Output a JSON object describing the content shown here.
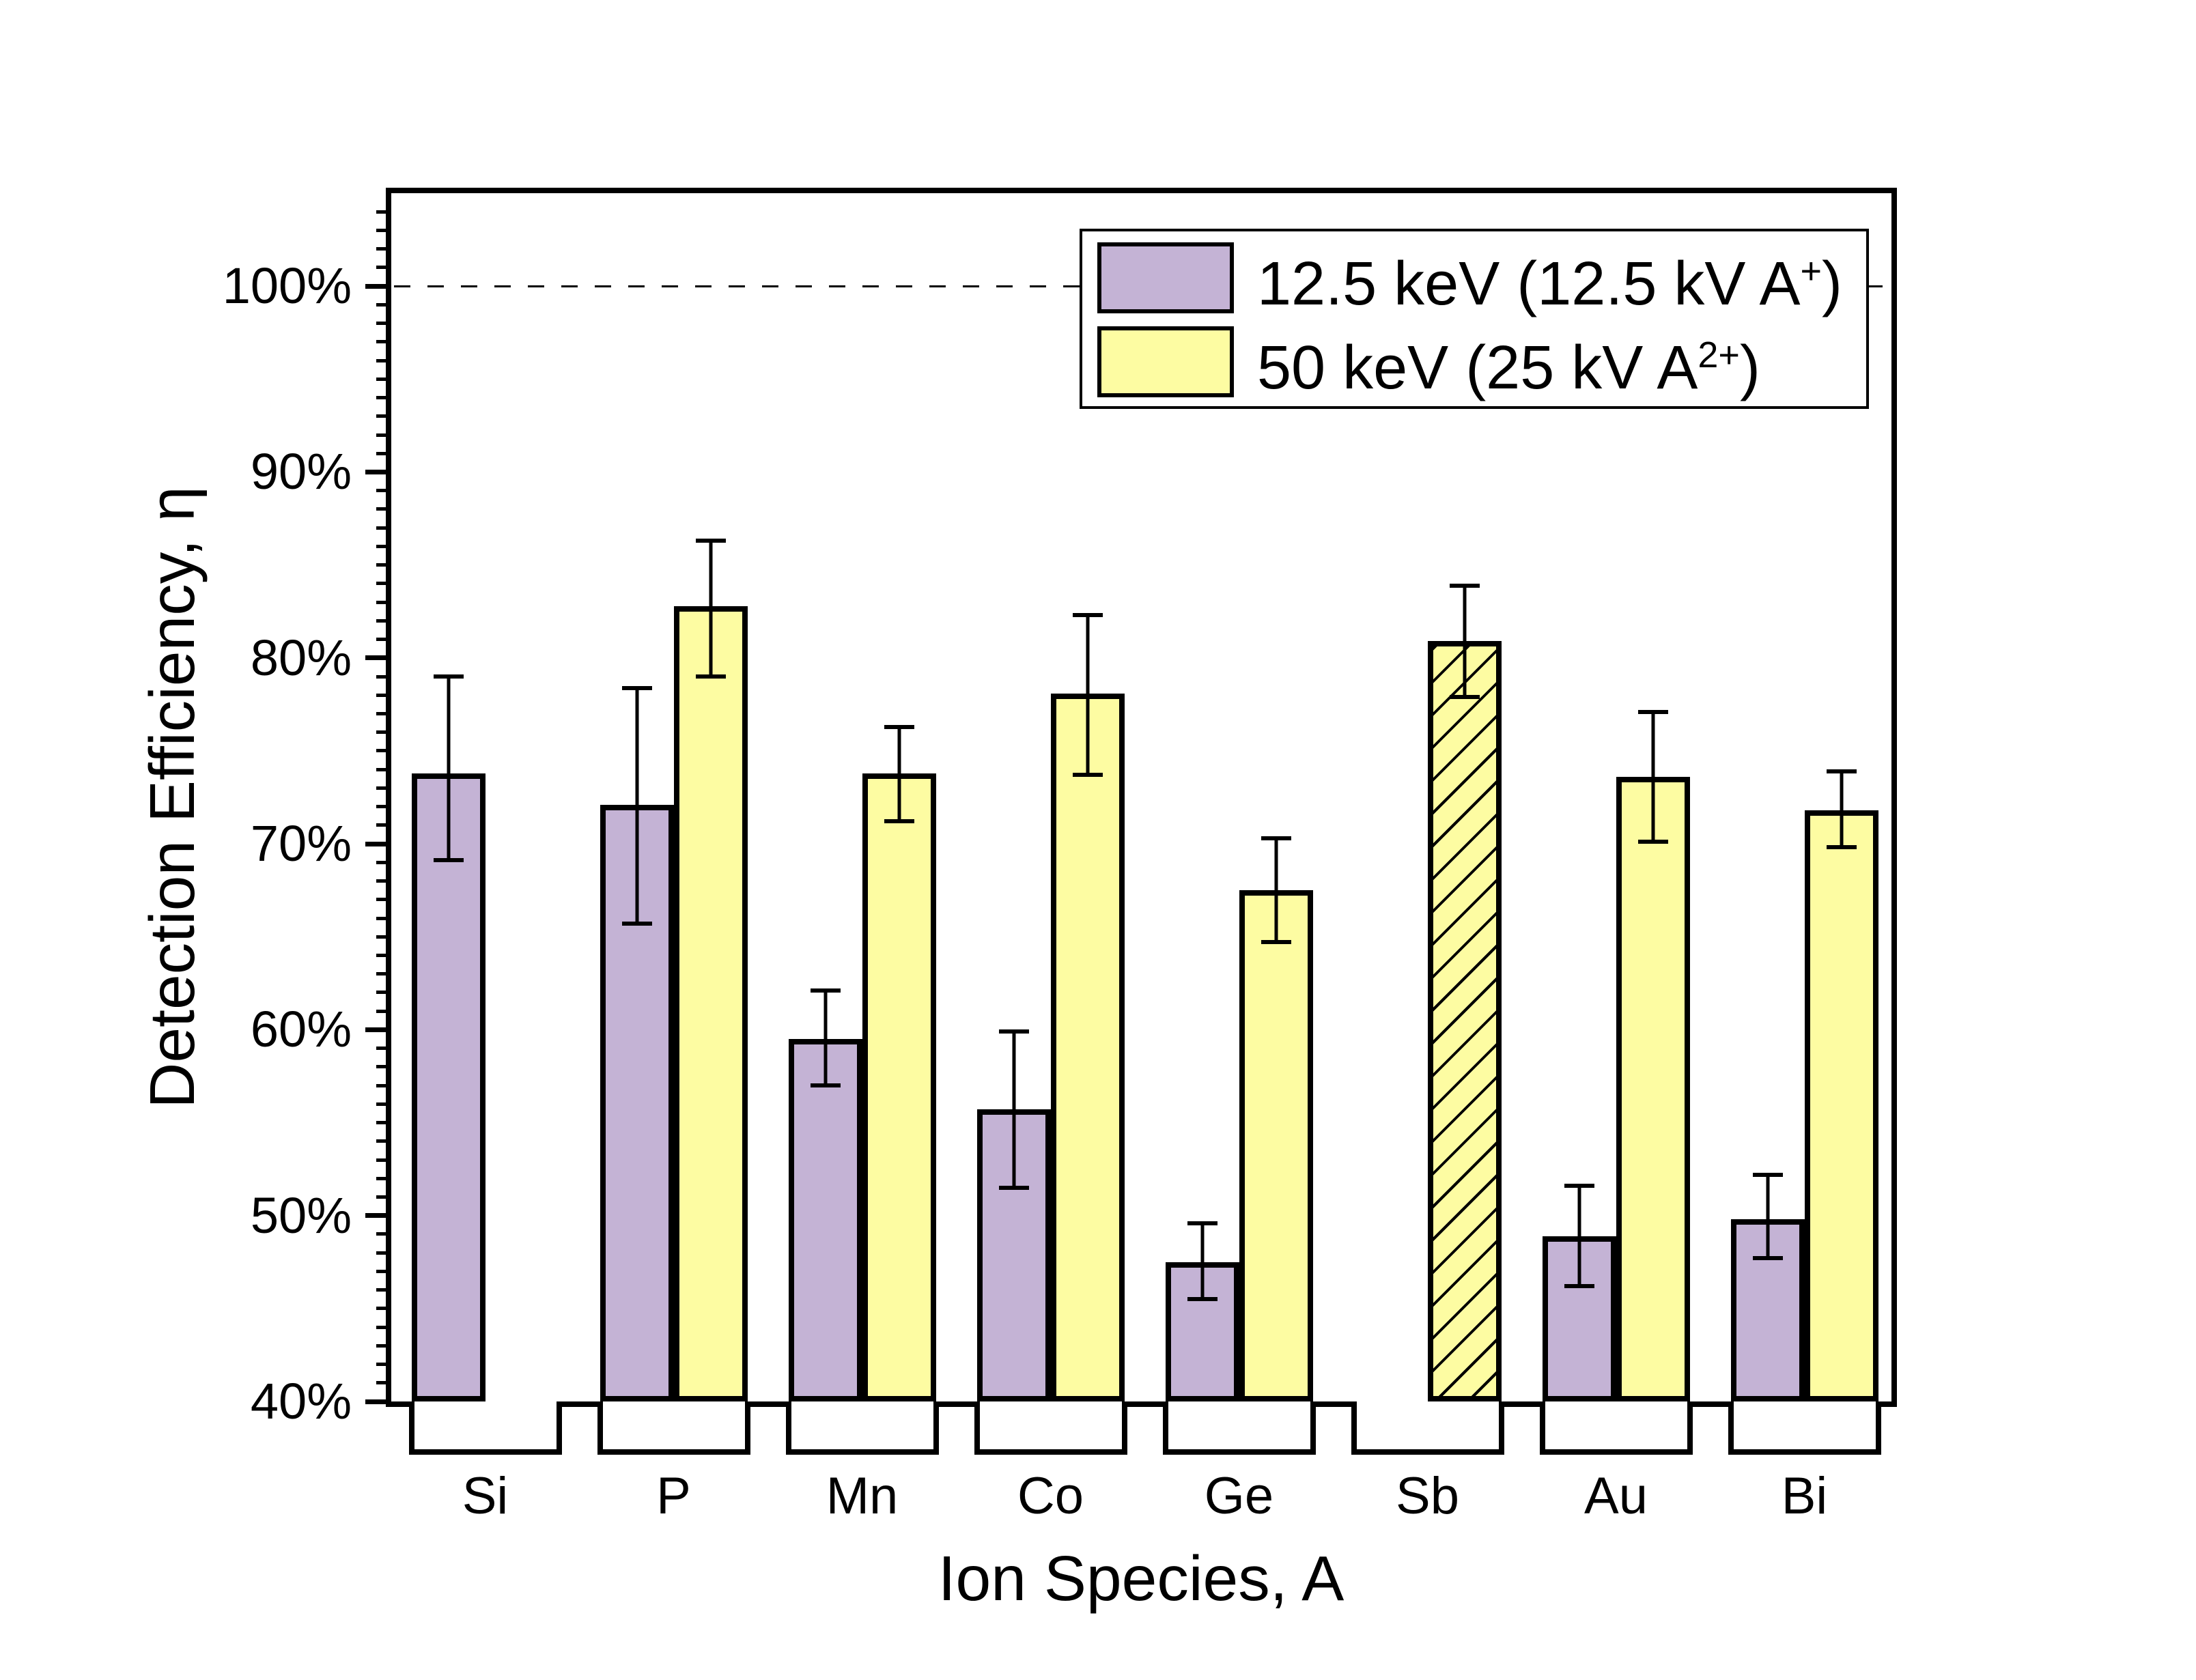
{
  "figure": {
    "background": "#ffffff"
  },
  "y_axis": {
    "title": "Detection Efficiency, η",
    "tick_labels": [
      "40%",
      "50%",
      "60%",
      "70%",
      "80%",
      "90%",
      "100%"
    ],
    "min": 40,
    "max": 105,
    "major_step": 10,
    "minor_step": 1
  },
  "x_axis": {
    "title": "Ion Species, A",
    "categories": [
      "Si",
      "P",
      "Mn",
      "Co",
      "Ge",
      "Sb",
      "Au",
      "Bi"
    ]
  },
  "legend": {
    "items": [
      {
        "prefix": "12.5 keV (12.5 kV A",
        "sup": "+",
        "suffix": ")",
        "color": "#c4b3d5",
        "hatched": false
      },
      {
        "prefix": "50 keV (25 kV A",
        "sup": "2+",
        "suffix": ")",
        "color": "#fdfca2",
        "hatched": false
      }
    ]
  },
  "colors": {
    "purple_fill": "#c4b3d5",
    "yellow_fill": "#fdfca2",
    "line": "#000000"
  },
  "chart_data": {
    "type": "bar",
    "title": "",
    "xlabel": "Ion Species, A",
    "ylabel": "Detection Efficiency, η",
    "ylim": [
      40,
      105
    ],
    "grid": false,
    "legend_position": "top-right",
    "reference_line": {
      "value": 100,
      "style": "dashed"
    },
    "categories": [
      "Si",
      "P",
      "Mn",
      "Co",
      "Ge",
      "Sb",
      "Au",
      "Bi"
    ],
    "series": [
      {
        "name": "12.5 keV (12.5 kV A⁺)",
        "color": "#c4b3d5",
        "values": [
          73.8,
          72.1,
          59.5,
          55.7,
          47.5,
          null,
          48.9,
          49.8
        ],
        "err_up": [
          5.3,
          6.4,
          2.7,
          4.3,
          2.2,
          null,
          2.8,
          2.5
        ],
        "err_down": [
          4.8,
          6.5,
          2.6,
          4.3,
          2.1,
          null,
          2.8,
          2.2
        ],
        "hatched": [
          false,
          false,
          false,
          false,
          false,
          false,
          false,
          false
        ]
      },
      {
        "name": "50 keV (25 kV A²⁺)",
        "color": "#fdfca2",
        "values": [
          null,
          82.8,
          73.8,
          78.1,
          67.5,
          80.9,
          73.6,
          71.8
        ],
        "err_up": [
          null,
          3.6,
          2.6,
          4.3,
          2.9,
          3.1,
          3.6,
          2.2
        ],
        "err_down": [
          null,
          3.9,
          2.7,
          4.5,
          2.9,
          3.1,
          3.6,
          2.1
        ],
        "hatched": [
          false,
          false,
          false,
          false,
          false,
          true,
          false,
          false
        ]
      }
    ]
  }
}
